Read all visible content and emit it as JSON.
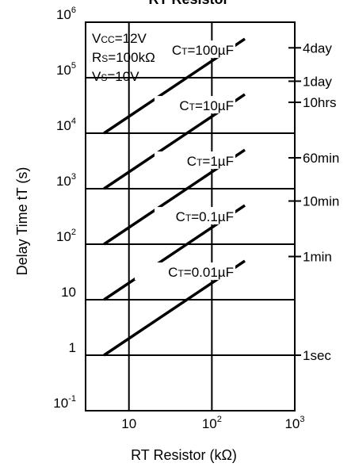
{
  "chart_data": {
    "type": "line",
    "title": "RT Resistor",
    "xlabel": "RT Resistor (kΩ)",
    "ylabel": "Delay Time tT  (s)",
    "x_scale": "log",
    "y_scale": "log",
    "xlim": [
      3,
      1000
    ],
    "ylim": [
      0.1,
      1000000
    ],
    "grid": true,
    "x_ticks": [
      {
        "value": 10,
        "base": "10",
        "exp": ""
      },
      {
        "value": 100,
        "base": "10",
        "exp": "2"
      },
      {
        "value": 1000,
        "base": "10",
        "exp": "3"
      }
    ],
    "y_ticks": [
      {
        "value": 1000000,
        "base": "10",
        "exp": "6"
      },
      {
        "value": 100000,
        "base": "10",
        "exp": "5"
      },
      {
        "value": 10000,
        "base": "10",
        "exp": "4"
      },
      {
        "value": 1000,
        "base": "10",
        "exp": "3"
      },
      {
        "value": 100,
        "base": "10",
        "exp": "2"
      },
      {
        "value": 10,
        "base": "10",
        "exp": ""
      },
      {
        "value": 1,
        "base": "1",
        "exp": ""
      },
      {
        "value": 0.1,
        "base": "10",
        "exp": "-1"
      }
    ],
    "right_axis_labels": [
      {
        "value": 345600,
        "label": "4day"
      },
      {
        "value": 86400,
        "label": "1day"
      },
      {
        "value": 36000,
        "label": "10hrs"
      },
      {
        "value": 3600,
        "label": "60min"
      },
      {
        "value": 600,
        "label": "10min"
      },
      {
        "value": 60,
        "label": "1min"
      },
      {
        "value": 1,
        "label": "1sec"
      }
    ],
    "conditions": [
      "VCC=12V",
      "RS=100kΩ",
      "VS=10V"
    ],
    "series": [
      {
        "name": "CT=100µF",
        "x": [
          5,
          250
        ],
        "y": [
          10000,
          500000
        ]
      },
      {
        "name": "CT=10µF",
        "x": [
          5,
          250
        ],
        "y": [
          1000,
          50000
        ]
      },
      {
        "name": "CT=1µF",
        "x": [
          5,
          250
        ],
        "y": [
          100,
          5000
        ]
      },
      {
        "name": "CT=0.1µF",
        "x": [
          5,
          250
        ],
        "y": [
          10,
          500
        ]
      },
      {
        "name": "CT=0.01µF",
        "x": [
          5,
          250
        ],
        "y": [
          1,
          50
        ]
      }
    ],
    "line_color": "#000000"
  }
}
